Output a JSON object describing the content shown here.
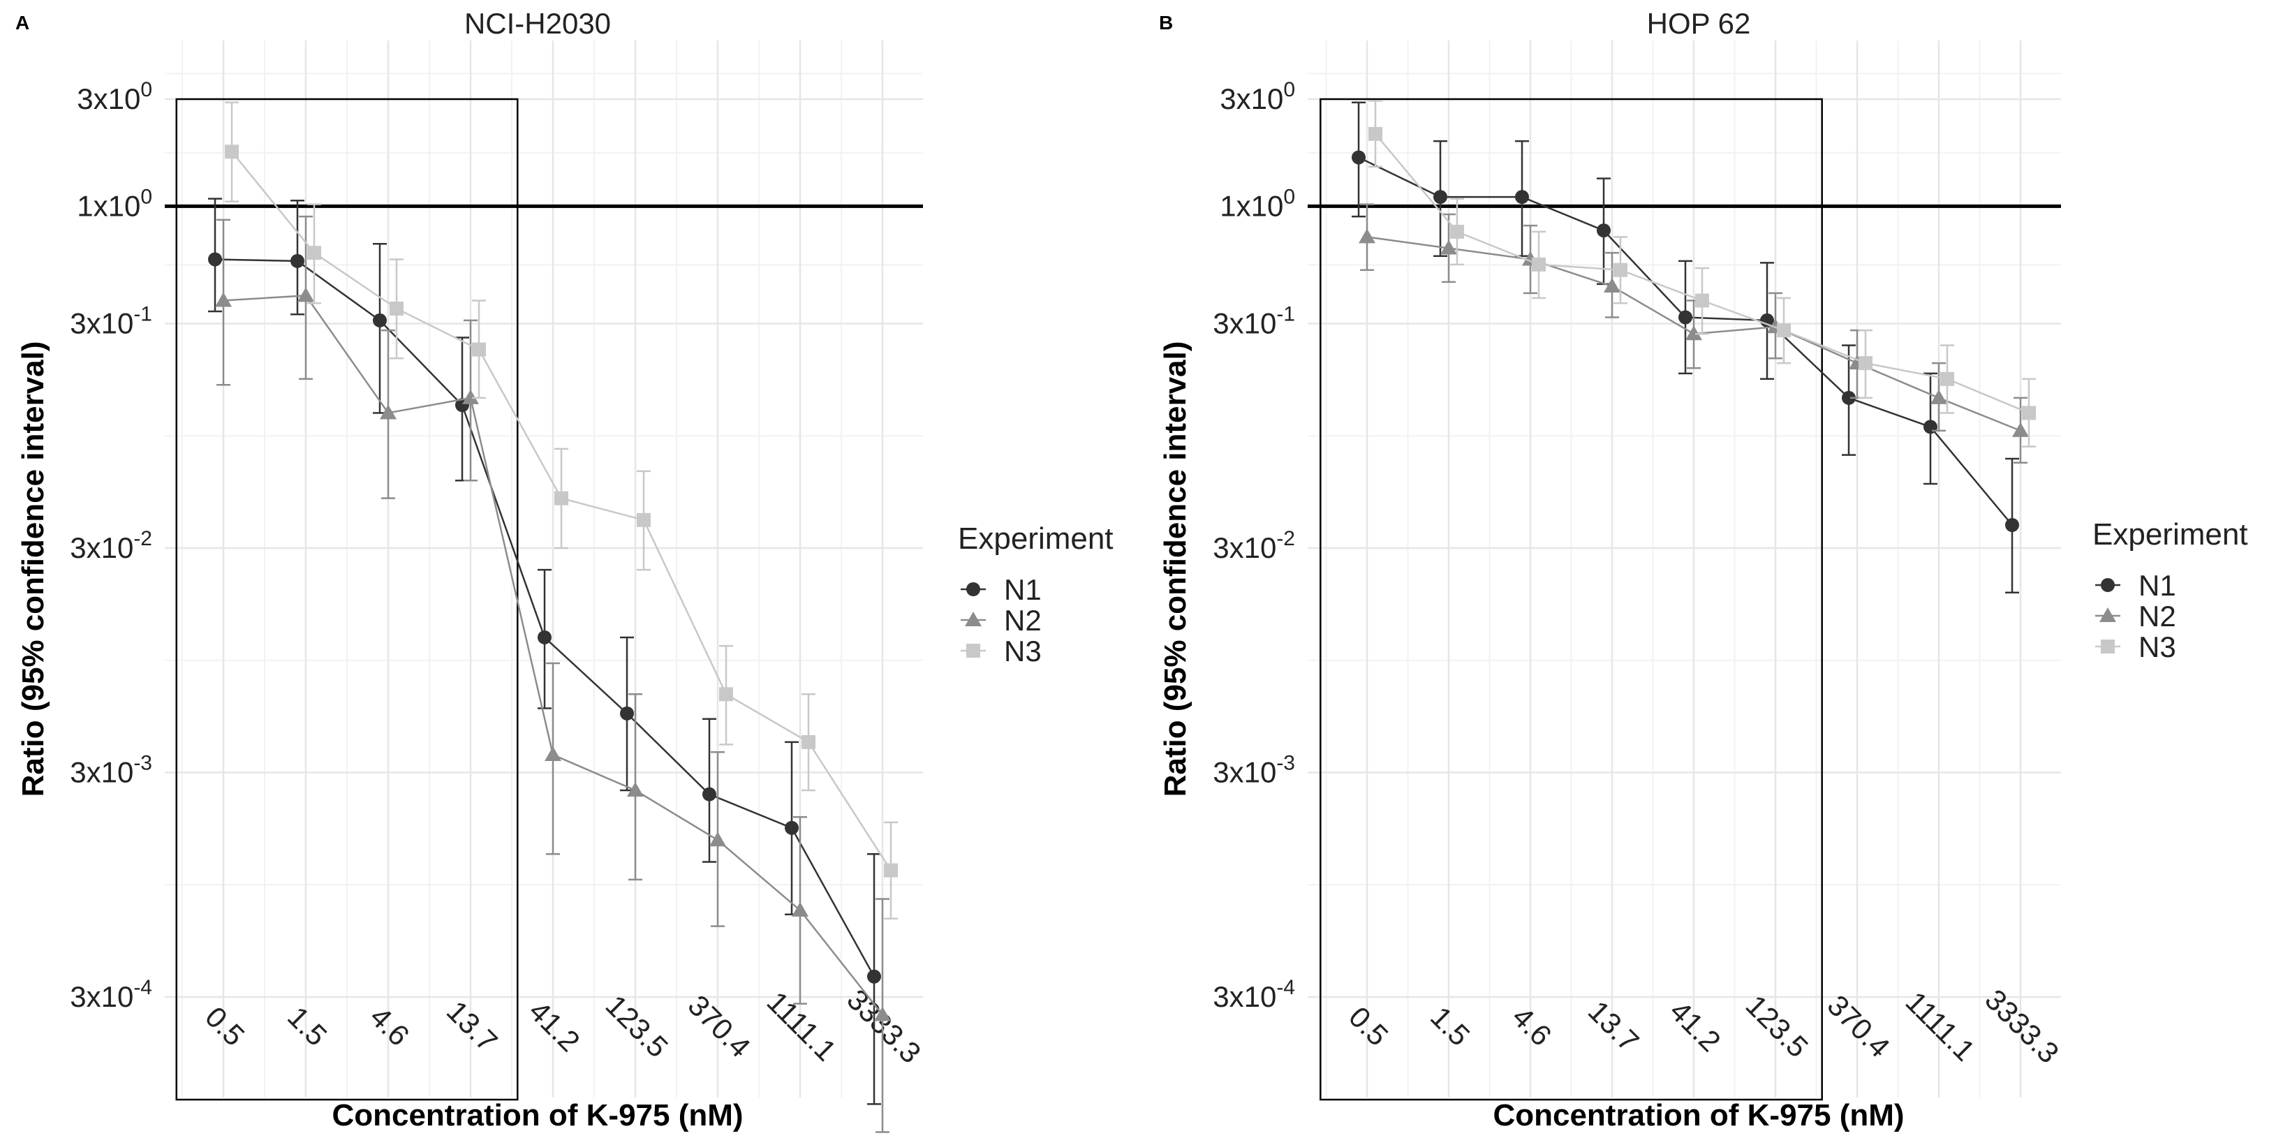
{
  "chart_data": [
    {
      "type": "line",
      "panel": "A",
      "title": "NCI-H2030",
      "xlabel": "Concentration of K-975 (nM)",
      "ylabel": "Ratio (95% confidence interval)",
      "categories": [
        "0.5",
        "1.5",
        "4.6",
        "13.7",
        "41.2",
        "123.5",
        "370.4",
        "1111.1",
        "3333.3"
      ],
      "yscale": "log",
      "ylim": [
        0.00012,
        5
      ],
      "yticks": [
        {
          "value": 0.0003,
          "mantissa": "3x10",
          "exp": "-4"
        },
        {
          "value": 0.003,
          "mantissa": "3x10",
          "exp": "-3"
        },
        {
          "value": 0.03,
          "mantissa": "3x10",
          "exp": "-2"
        },
        {
          "value": 0.3,
          "mantissa": "3x10",
          "exp": "-1"
        },
        {
          "value": 1,
          "mantissa": "1x10",
          "exp": "0"
        },
        {
          "value": 3,
          "mantissa": "3x10",
          "exp": "0"
        }
      ],
      "reference_line": 1,
      "highlight_box": {
        "from_category": "0.5",
        "to_category": "13.7",
        "y_top": 3
      },
      "legend": {
        "title": "Experiment",
        "entries": [
          "N1",
          "N2",
          "N3"
        ]
      },
      "series": [
        {
          "name": "N1",
          "marker": "circle",
          "color": "#333333",
          "values": [
            0.58,
            0.57,
            0.31,
            0.13,
            0.012,
            0.0055,
            0.0024,
            0.0017,
            0.00037
          ],
          "lower": [
            0.34,
            0.33,
            0.12,
            0.06,
            0.0058,
            0.0025,
            0.0012,
            0.0007,
            0.0001
          ],
          "upper": [
            1.08,
            1.06,
            0.68,
            0.26,
            0.024,
            0.012,
            0.0052,
            0.0041,
            0.0013
          ]
        },
        {
          "name": "N2",
          "marker": "triangle",
          "color": "#8c8c8c",
          "values": [
            0.38,
            0.4,
            0.12,
            0.14,
            0.0036,
            0.0025,
            0.0015,
            0.00073,
            0.00025
          ],
          "lower": [
            0.16,
            0.17,
            0.05,
            0.06,
            0.0013,
            0.001,
            0.00062,
            0.00028,
            7.5e-05
          ],
          "upper": [
            0.87,
            0.9,
            0.28,
            0.31,
            0.0092,
            0.0067,
            0.0037,
            0.0019,
            0.00082
          ]
        },
        {
          "name": "N3",
          "marker": "square",
          "color": "#c8c8c8",
          "values": [
            1.75,
            0.62,
            0.35,
            0.23,
            0.05,
            0.04,
            0.0067,
            0.0041,
            0.0011
          ],
          "lower": [
            1.05,
            0.37,
            0.21,
            0.14,
            0.03,
            0.024,
            0.004,
            0.0025,
            0.00067
          ],
          "upper": [
            2.9,
            1.02,
            0.58,
            0.38,
            0.083,
            0.066,
            0.011,
            0.0067,
            0.0018
          ]
        }
      ]
    },
    {
      "type": "line",
      "panel": "B",
      "title": "HOP 62",
      "xlabel": "Concentration of K-975 (nM)",
      "ylabel": "Ratio (95% confidence interval)",
      "categories": [
        "0.5",
        "1.5",
        "4.6",
        "13.7",
        "41.2",
        "123.5",
        "370.4",
        "1111.1",
        "3333.3"
      ],
      "yscale": "log",
      "ylim": [
        0.00012,
        5
      ],
      "yticks": [
        {
          "value": 0.0003,
          "mantissa": "3x10",
          "exp": "-4"
        },
        {
          "value": 0.003,
          "mantissa": "3x10",
          "exp": "-3"
        },
        {
          "value": 0.03,
          "mantissa": "3x10",
          "exp": "-2"
        },
        {
          "value": 0.3,
          "mantissa": "3x10",
          "exp": "-1"
        },
        {
          "value": 1,
          "mantissa": "1x10",
          "exp": "0"
        },
        {
          "value": 3,
          "mantissa": "3x10",
          "exp": "0"
        }
      ],
      "reference_line": 1,
      "highlight_box": {
        "from_category": "0.5",
        "to_category": "123.5",
        "y_top": 3
      },
      "legend": {
        "title": "Experiment",
        "entries": [
          "N1",
          "N2",
          "N3"
        ]
      },
      "series": [
        {
          "name": "N1",
          "marker": "circle",
          "color": "#333333",
          "values": [
            1.65,
            1.1,
            1.1,
            0.78,
            0.32,
            0.31,
            0.14,
            0.104,
            0.038
          ],
          "lower": [
            0.9,
            0.6,
            0.6,
            0.45,
            0.18,
            0.17,
            0.078,
            0.058,
            0.019
          ],
          "upper": [
            2.9,
            1.95,
            1.95,
            1.33,
            0.57,
            0.56,
            0.24,
            0.18,
            0.075
          ]
        },
        {
          "name": "N2",
          "marker": "triangle",
          "color": "#8c8c8c",
          "values": [
            0.73,
            0.65,
            0.58,
            0.44,
            0.27,
            0.29,
            0.2,
            0.14,
            0.1
          ],
          "lower": [
            0.52,
            0.46,
            0.41,
            0.32,
            0.19,
            0.21,
            0.14,
            0.1,
            0.072
          ],
          "upper": [
            1.02,
            0.92,
            0.82,
            0.62,
            0.38,
            0.41,
            0.28,
            0.2,
            0.14
          ]
        },
        {
          "name": "N3",
          "marker": "square",
          "color": "#c8c8c8",
          "values": [
            2.1,
            0.77,
            0.55,
            0.52,
            0.38,
            0.28,
            0.2,
            0.17,
            0.12
          ],
          "lower": [
            1.5,
            0.55,
            0.39,
            0.37,
            0.27,
            0.2,
            0.14,
            0.12,
            0.085
          ],
          "upper": [
            2.95,
            1.08,
            0.77,
            0.73,
            0.53,
            0.39,
            0.28,
            0.24,
            0.17
          ]
        }
      ]
    }
  ]
}
